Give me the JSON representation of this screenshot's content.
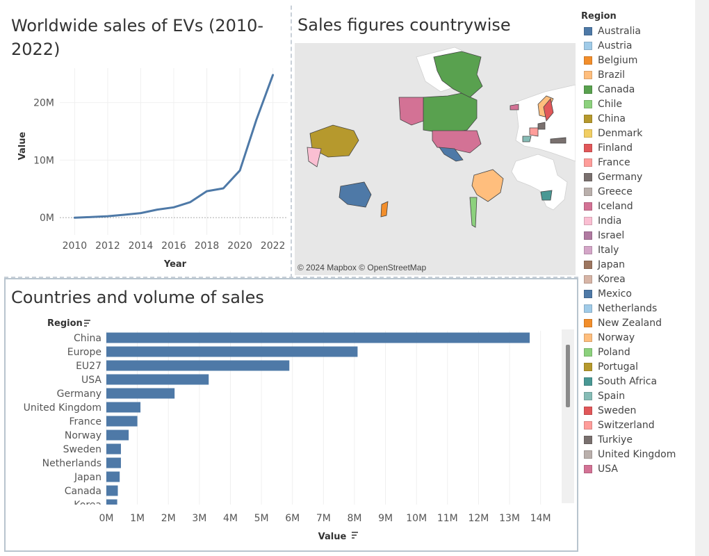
{
  "line_chart": {
    "title": "Worldwide sales of EVs (2010-2022)",
    "ylabel": "Value",
    "xlabel": "Year",
    "yticks": [
      "0M",
      "10M",
      "20M"
    ],
    "xticks": [
      "2010",
      "2012",
      "2014",
      "2016",
      "2018",
      "2020",
      "2022"
    ]
  },
  "map": {
    "title": "Sales figures countrywise",
    "attribution": "© 2024 Mapbox © OpenStreetMap"
  },
  "bar_chart": {
    "title": "Countries and  volume of sales",
    "region_header": "Region",
    "xlabel": "Value",
    "xticks": [
      "0M",
      "1M",
      "2M",
      "3M",
      "4M",
      "5M",
      "6M",
      "7M",
      "8M",
      "9M",
      "10M",
      "11M",
      "12M",
      "13M",
      "14M"
    ]
  },
  "legend": {
    "title": "Region",
    "items": [
      {
        "label": "Australia",
        "color": "#4e79a7"
      },
      {
        "label": "Austria",
        "color": "#a0cbe8"
      },
      {
        "label": "Belgium",
        "color": "#f28e2b"
      },
      {
        "label": "Brazil",
        "color": "#ffbe7d"
      },
      {
        "label": "Canada",
        "color": "#59a14f"
      },
      {
        "label": "Chile",
        "color": "#8cd17d"
      },
      {
        "label": "China",
        "color": "#b6992d"
      },
      {
        "label": "Denmark",
        "color": "#f1ce63"
      },
      {
        "label": "Finland",
        "color": "#e15759"
      },
      {
        "label": "France",
        "color": "#ff9d9a"
      },
      {
        "label": "Germany",
        "color": "#79706e"
      },
      {
        "label": "Greece",
        "color": "#bab0ac"
      },
      {
        "label": "Iceland",
        "color": "#d37295"
      },
      {
        "label": "India",
        "color": "#fabfd2"
      },
      {
        "label": "Israel",
        "color": "#b07aa1"
      },
      {
        "label": "Italy",
        "color": "#d4a6c8"
      },
      {
        "label": "Japan",
        "color": "#9d7660"
      },
      {
        "label": "Korea",
        "color": "#d7b5a6"
      },
      {
        "label": "Mexico",
        "color": "#4e79a7"
      },
      {
        "label": "Netherlands",
        "color": "#a0cbe8"
      },
      {
        "label": "New Zealand",
        "color": "#f28e2b"
      },
      {
        "label": "Norway",
        "color": "#ffbe7d"
      },
      {
        "label": "Poland",
        "color": "#8cd17d"
      },
      {
        "label": "Portugal",
        "color": "#b6992d"
      },
      {
        "label": "South Africa",
        "color": "#499894"
      },
      {
        "label": "Spain",
        "color": "#86bcb6"
      },
      {
        "label": "Sweden",
        "color": "#e15759"
      },
      {
        "label": "Switzerland",
        "color": "#ff9d9a"
      },
      {
        "label": "Turkiye",
        "color": "#79706e"
      },
      {
        "label": "United Kingdom",
        "color": "#bab0ac"
      },
      {
        "label": "USA",
        "color": "#d37295"
      }
    ]
  },
  "chart_data": [
    {
      "type": "line",
      "title": "Worldwide sales of EVs (2010-2022)",
      "xlabel": "Year",
      "ylabel": "Value",
      "x": [
        2010,
        2011,
        2012,
        2013,
        2014,
        2015,
        2016,
        2017,
        2018,
        2019,
        2020,
        2021,
        2022
      ],
      "y": [
        0.0,
        0.1,
        0.25,
        0.5,
        0.8,
        1.4,
        1.8,
        2.7,
        4.6,
        5.1,
        8.2,
        17.0,
        24.8
      ],
      "y_unit": "M",
      "xlim": [
        2009.1,
        2022.9
      ],
      "ylim": [
        -3,
        26
      ],
      "color": "#4e79a7",
      "grid": true
    },
    {
      "type": "bar",
      "title": "Countries and  volume of sales",
      "orientation": "horizontal",
      "ylabel": "Region",
      "xlabel": "Value",
      "categories": [
        "China",
        "Europe",
        "EU27",
        "USA",
        "Germany",
        "United Kingdom",
        "France",
        "Norway",
        "Sweden",
        "Netherlands",
        "Japan",
        "Canada",
        "Korea"
      ],
      "values": [
        13.65,
        8.1,
        5.9,
        3.3,
        2.2,
        1.1,
        1.0,
        0.72,
        0.47,
        0.47,
        0.43,
        0.37,
        0.35
      ],
      "value_unit": "M",
      "xlim": [
        0,
        14.5
      ],
      "color": "#4e79a7",
      "grid": true
    }
  ]
}
